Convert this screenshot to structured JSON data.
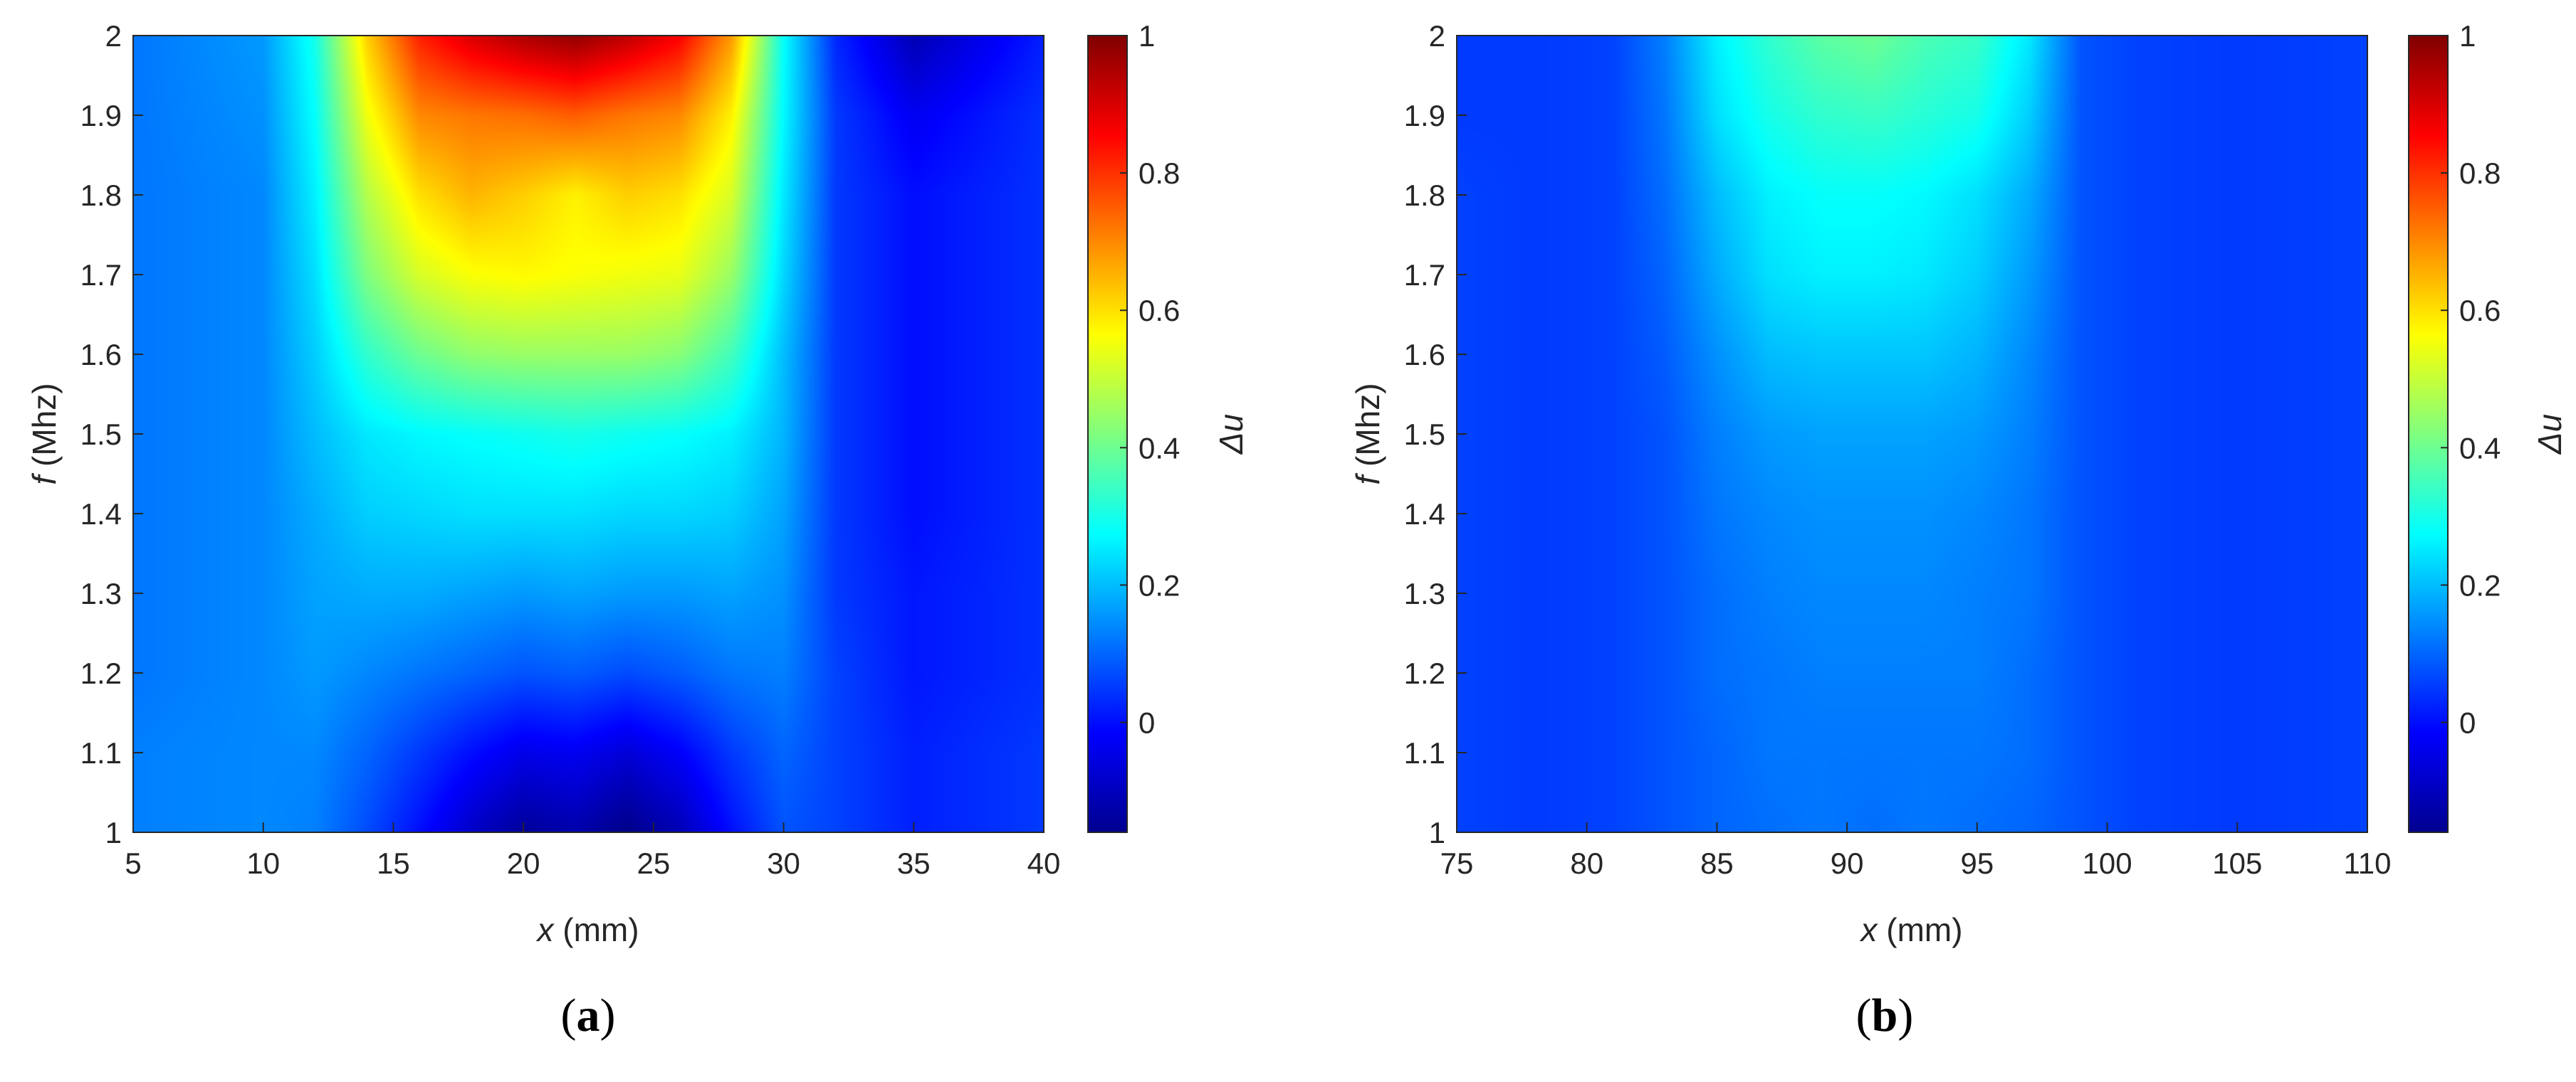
{
  "chart_data": [
    {
      "type": "heatmap",
      "panel_label": "a",
      "xlabel_var": "x",
      "xlabel_unit": " (mm)",
      "ylabel_var": "f",
      "ylabel_unit": " (Mhz)",
      "colorbar_label": "Δu",
      "xlim": [
        5,
        40
      ],
      "ylim": [
        1,
        2
      ],
      "clim": [
        -0.16,
        1
      ],
      "colormap": "jet",
      "x_ticks": [
        "5",
        "10",
        "15",
        "20",
        "25",
        "30",
        "35",
        "40"
      ],
      "y_ticks": [
        "1",
        "1.1",
        "1.2",
        "1.3",
        "1.4",
        "1.5",
        "1.6",
        "1.7",
        "1.8",
        "1.9",
        "2"
      ],
      "colorbar_ticks": [
        "0",
        "0.2",
        "0.4",
        "0.6",
        "0.8",
        "1"
      ],
      "x": [
        5,
        10,
        12,
        14,
        16,
        18,
        20,
        22,
        24,
        26,
        28,
        30,
        32,
        35,
        40
      ],
      "y": [
        1,
        1.1,
        1.2,
        1.3,
        1.4,
        1.5,
        1.6,
        1.7,
        1.8,
        1.9,
        2
      ],
      "z": [
        [
          0.13,
          0.14,
          0.13,
          0.07,
          0.0,
          -0.08,
          -0.13,
          -0.11,
          -0.15,
          -0.1,
          0.0,
          0.08,
          0.06,
          0.02,
          0.05
        ],
        [
          0.13,
          0.14,
          0.14,
          0.1,
          0.05,
          0.0,
          -0.04,
          -0.03,
          -0.06,
          -0.02,
          0.05,
          0.1,
          0.06,
          0.02,
          0.05
        ],
        [
          0.12,
          0.14,
          0.16,
          0.14,
          0.12,
          0.1,
          0.08,
          0.09,
          0.07,
          0.09,
          0.12,
          0.13,
          0.06,
          0.01,
          0.04
        ],
        [
          0.12,
          0.14,
          0.17,
          0.18,
          0.18,
          0.17,
          0.16,
          0.17,
          0.16,
          0.16,
          0.17,
          0.15,
          0.05,
          0.01,
          0.04
        ],
        [
          0.12,
          0.14,
          0.18,
          0.22,
          0.23,
          0.24,
          0.24,
          0.24,
          0.23,
          0.23,
          0.22,
          0.17,
          0.05,
          0.0,
          0.04
        ],
        [
          0.12,
          0.14,
          0.2,
          0.25,
          0.27,
          0.28,
          0.29,
          0.3,
          0.29,
          0.28,
          0.26,
          0.19,
          0.05,
          0.0,
          0.04
        ],
        [
          0.12,
          0.14,
          0.22,
          0.33,
          0.4,
          0.44,
          0.45,
          0.45,
          0.45,
          0.43,
          0.35,
          0.2,
          0.05,
          0.0,
          0.04
        ],
        [
          0.12,
          0.14,
          0.24,
          0.42,
          0.52,
          0.56,
          0.57,
          0.56,
          0.55,
          0.54,
          0.45,
          0.23,
          0.05,
          0.0,
          0.04
        ],
        [
          0.12,
          0.14,
          0.26,
          0.48,
          0.6,
          0.65,
          0.62,
          0.58,
          0.62,
          0.6,
          0.52,
          0.25,
          0.05,
          0.0,
          0.04
        ],
        [
          0.12,
          0.15,
          0.28,
          0.55,
          0.7,
          0.72,
          0.73,
          0.75,
          0.72,
          0.7,
          0.58,
          0.27,
          0.05,
          -0.03,
          0.04
        ],
        [
          0.12,
          0.16,
          0.3,
          0.62,
          0.82,
          0.9,
          0.95,
          0.98,
          0.93,
          0.86,
          0.68,
          0.28,
          0.03,
          -0.1,
          0.02
        ]
      ]
    },
    {
      "type": "heatmap",
      "panel_label": "b",
      "xlabel_var": "x",
      "xlabel_unit": " (mm)",
      "ylabel_var": "f",
      "ylabel_unit": " (Mhz)",
      "colorbar_label": "Δu",
      "xlim": [
        75,
        110
      ],
      "ylim": [
        1,
        2
      ],
      "clim": [
        -0.16,
        1
      ],
      "colormap": "jet",
      "x_ticks": [
        "75",
        "80",
        "85",
        "90",
        "95",
        "100",
        "105",
        "110"
      ],
      "y_ticks": [
        "1",
        "1.1",
        "1.2",
        "1.3",
        "1.4",
        "1.5",
        "1.6",
        "1.7",
        "1.8",
        "1.9",
        "2"
      ],
      "colorbar_ticks": [
        "0",
        "0.2",
        "0.4",
        "0.6",
        "0.8",
        "1"
      ],
      "x": [
        75,
        78,
        81,
        83,
        85,
        87,
        89,
        91,
        93,
        95,
        97,
        99,
        101,
        105,
        110
      ],
      "y": [
        1,
        1.1,
        1.2,
        1.3,
        1.4,
        1.5,
        1.6,
        1.7,
        1.8,
        1.9,
        2
      ],
      "z": [
        [
          0.06,
          0.05,
          0.06,
          0.08,
          0.1,
          0.11,
          0.12,
          0.11,
          0.12,
          0.11,
          0.1,
          0.08,
          0.06,
          0.05,
          0.06
        ],
        [
          0.06,
          0.05,
          0.06,
          0.08,
          0.1,
          0.12,
          0.12,
          0.12,
          0.12,
          0.12,
          0.11,
          0.08,
          0.06,
          0.05,
          0.06
        ],
        [
          0.06,
          0.05,
          0.06,
          0.08,
          0.11,
          0.12,
          0.13,
          0.13,
          0.13,
          0.13,
          0.11,
          0.08,
          0.06,
          0.05,
          0.06
        ],
        [
          0.06,
          0.05,
          0.06,
          0.08,
          0.11,
          0.13,
          0.14,
          0.14,
          0.14,
          0.13,
          0.12,
          0.08,
          0.06,
          0.05,
          0.06
        ],
        [
          0.06,
          0.05,
          0.06,
          0.08,
          0.12,
          0.14,
          0.15,
          0.15,
          0.15,
          0.14,
          0.12,
          0.08,
          0.06,
          0.05,
          0.06
        ],
        [
          0.06,
          0.05,
          0.06,
          0.08,
          0.13,
          0.16,
          0.17,
          0.17,
          0.17,
          0.16,
          0.13,
          0.08,
          0.06,
          0.05,
          0.06
        ],
        [
          0.06,
          0.05,
          0.06,
          0.09,
          0.15,
          0.2,
          0.21,
          0.21,
          0.21,
          0.19,
          0.14,
          0.08,
          0.06,
          0.05,
          0.06
        ],
        [
          0.06,
          0.05,
          0.06,
          0.1,
          0.18,
          0.24,
          0.26,
          0.26,
          0.25,
          0.22,
          0.16,
          0.08,
          0.06,
          0.05,
          0.06
        ],
        [
          0.06,
          0.05,
          0.06,
          0.11,
          0.2,
          0.26,
          0.28,
          0.28,
          0.27,
          0.24,
          0.18,
          0.08,
          0.06,
          0.05,
          0.06
        ],
        [
          0.05,
          0.05,
          0.06,
          0.12,
          0.24,
          0.3,
          0.33,
          0.34,
          0.32,
          0.3,
          0.22,
          0.08,
          0.06,
          0.05,
          0.06
        ],
        [
          0.05,
          0.05,
          0.06,
          0.13,
          0.26,
          0.33,
          0.38,
          0.4,
          0.36,
          0.34,
          0.25,
          0.08,
          0.06,
          0.05,
          0.06
        ]
      ]
    }
  ]
}
